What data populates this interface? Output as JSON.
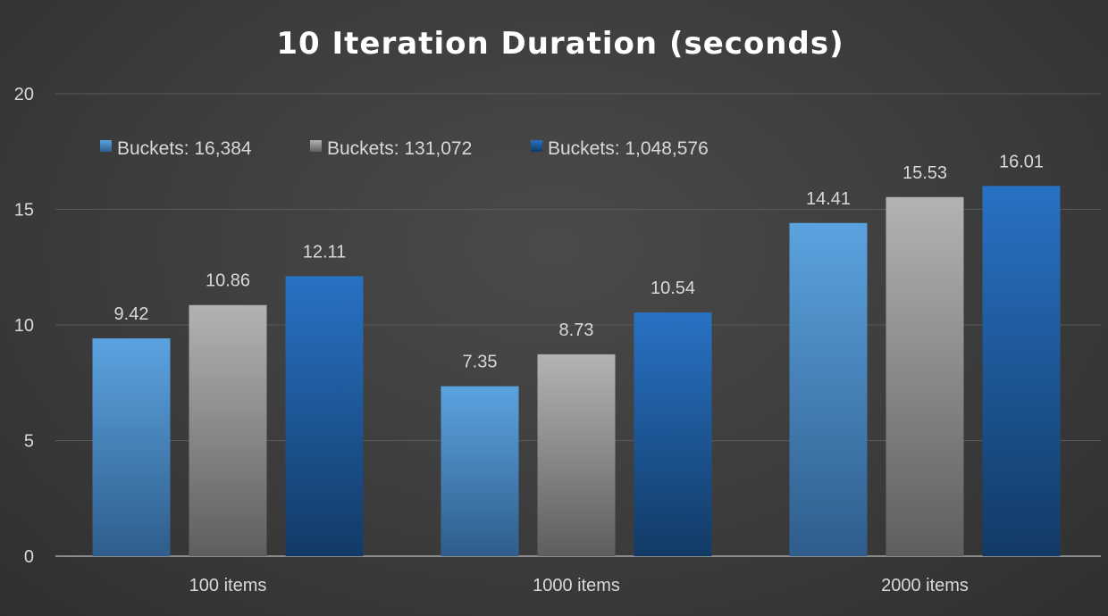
{
  "chart_data": {
    "type": "bar",
    "title": "10 Iteration Duration (seconds)",
    "xlabel": "",
    "ylabel": "",
    "categories": [
      "100 items",
      "1000 items",
      "2000 items"
    ],
    "series": [
      {
        "name": "Buckets: 16,384",
        "values": [
          9.42,
          7.35,
          14.41
        ],
        "color_top": "#5ba3e0",
        "color_bottom": "#2f5d8c"
      },
      {
        "name": "Buckets: 131,072",
        "values": [
          10.86,
          8.73,
          15.53
        ],
        "color_top": "#b3b3b3",
        "color_bottom": "#5e5e5e"
      },
      {
        "name": "Buckets: 1,048,576",
        "values": [
          12.11,
          10.54,
          16.01
        ],
        "color_top": "#2872c4",
        "color_bottom": "#123a66"
      }
    ],
    "data_labels": [
      [
        "9.42",
        "7.35",
        "14.41"
      ],
      [
        "10.86",
        "8.73",
        "15.53"
      ],
      [
        "12.11",
        "10.54",
        "16.01"
      ]
    ],
    "ylim": [
      0,
      20
    ],
    "yticks": [
      0,
      5,
      10,
      15,
      20
    ],
    "grid": true,
    "legend_position": "top-left"
  }
}
